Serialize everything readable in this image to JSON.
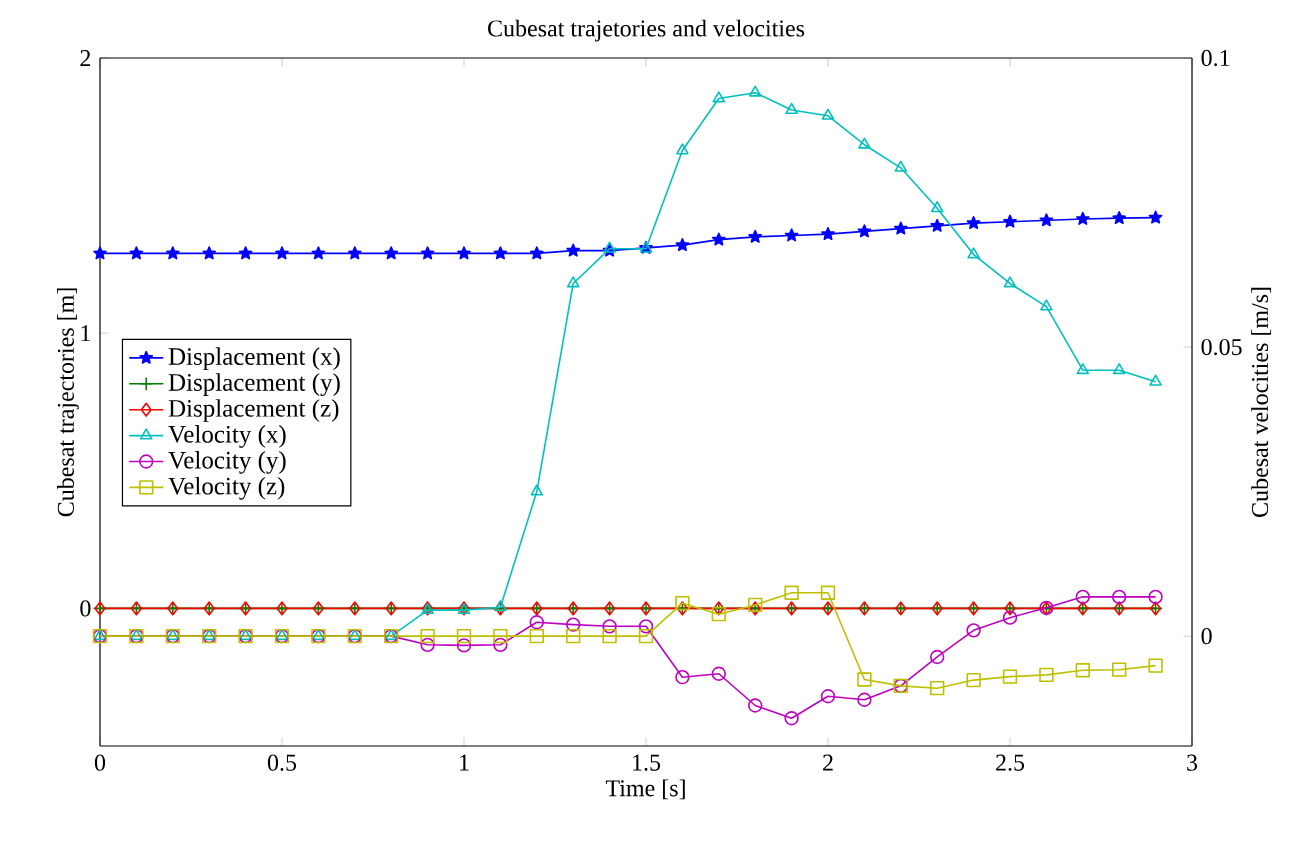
{
  "chart_data": {
    "type": "line",
    "title": "Cubesat trajetories and velocities",
    "xlabel": "Time [s]",
    "ylabel": "Cubesat trajectories [m]",
    "y2label": "Cubesat velocities [m/s]",
    "x": [
      0,
      0.1,
      0.2,
      0.3,
      0.4,
      0.5,
      0.6,
      0.7,
      0.8,
      0.9,
      1.0,
      1.1,
      1.2,
      1.3,
      1.4,
      1.5,
      1.6,
      1.7,
      1.8,
      1.9,
      2.0,
      2.1,
      2.2,
      2.3,
      2.4,
      2.5,
      2.6,
      2.7,
      2.8,
      2.9
    ],
    "series": [
      {
        "name": "Displacement (x)",
        "color": "#0000ff",
        "marker": "star",
        "values": [
          1.29,
          1.29,
          1.29,
          1.29,
          1.29,
          1.29,
          1.29,
          1.29,
          1.29,
          1.29,
          1.29,
          1.29,
          1.29,
          1.3,
          1.3,
          1.31,
          1.32,
          1.34,
          1.35,
          1.355,
          1.36,
          1.37,
          1.38,
          1.39,
          1.4,
          1.405,
          1.41,
          1.415,
          1.418,
          1.42
        ]
      },
      {
        "name": "Displacement (y)",
        "color": "#008000",
        "marker": "cross",
        "values": [
          0,
          0,
          0,
          0,
          0,
          0,
          0,
          0,
          0,
          0,
          0,
          0,
          0,
          0,
          0,
          0,
          0,
          0,
          0,
          0,
          0,
          0,
          0,
          0,
          0,
          0,
          0,
          0,
          0,
          0
        ]
      },
      {
        "name": "Displacement (z)",
        "color": "#ff0000",
        "marker": "diamond",
        "values": [
          0,
          0,
          0,
          0,
          0,
          0,
          0,
          0,
          0,
          0,
          0,
          0,
          0,
          0,
          0,
          0,
          0,
          0,
          0,
          0,
          0,
          0,
          0,
          0,
          0,
          0,
          0,
          0,
          0,
          0
        ]
      },
      {
        "name": "Velocity (x)",
        "color": "#00bfbf",
        "marker": "triangle",
        "axis": "y2",
        "values": [
          0,
          0,
          0,
          0,
          0,
          0,
          0,
          0,
          0,
          0.0045,
          0.0045,
          0.005,
          0.025,
          0.061,
          0.067,
          0.067,
          0.084,
          0.093,
          0.094,
          0.091,
          0.09,
          0.085,
          0.081,
          0.074,
          0.066,
          0.061,
          0.057,
          0.046,
          0.046,
          0.044
        ]
      },
      {
        "name": "Velocity (y)",
        "color": "#bf00bf",
        "marker": "circle",
        "axis": "y2",
        "values": [
          0,
          0,
          0,
          0,
          0,
          0,
          0,
          0,
          0,
          -0.0015,
          -0.0016,
          -0.0015,
          0.0024,
          0.002,
          0.0017,
          0.0017,
          -0.0071,
          -0.0065,
          -0.012,
          -0.0142,
          -0.0104,
          -0.011,
          -0.0086,
          -0.0036,
          0.001,
          0.0032,
          0.0049,
          0.0068,
          0.0068,
          0.0068
        ]
      },
      {
        "name": "Velocity (z)",
        "color": "#bfbf00",
        "marker": "square",
        "axis": "y2",
        "values": [
          0,
          0,
          0,
          0,
          0,
          0,
          0,
          0,
          0,
          0,
          0,
          0,
          0,
          0,
          0,
          0,
          0.0057,
          0.0038,
          0.0054,
          0.0075,
          0.0075,
          -0.0075,
          -0.0086,
          -0.009,
          -0.0076,
          -0.007,
          -0.0067,
          -0.0059,
          -0.0058,
          -0.0051
        ]
      }
    ],
    "xlim": [
      0,
      3
    ],
    "xticks": [
      0,
      0.5,
      1,
      1.5,
      2,
      2.5,
      3
    ],
    "ylim": [
      -0.5,
      2
    ],
    "yticks": [
      0,
      1,
      2
    ],
    "y2lim": [
      -0.019,
      0.1
    ],
    "y2ticks": [
      0,
      0.05,
      0.1
    ],
    "legend": "left",
    "grid": false,
    "line_style": "solid"
  }
}
